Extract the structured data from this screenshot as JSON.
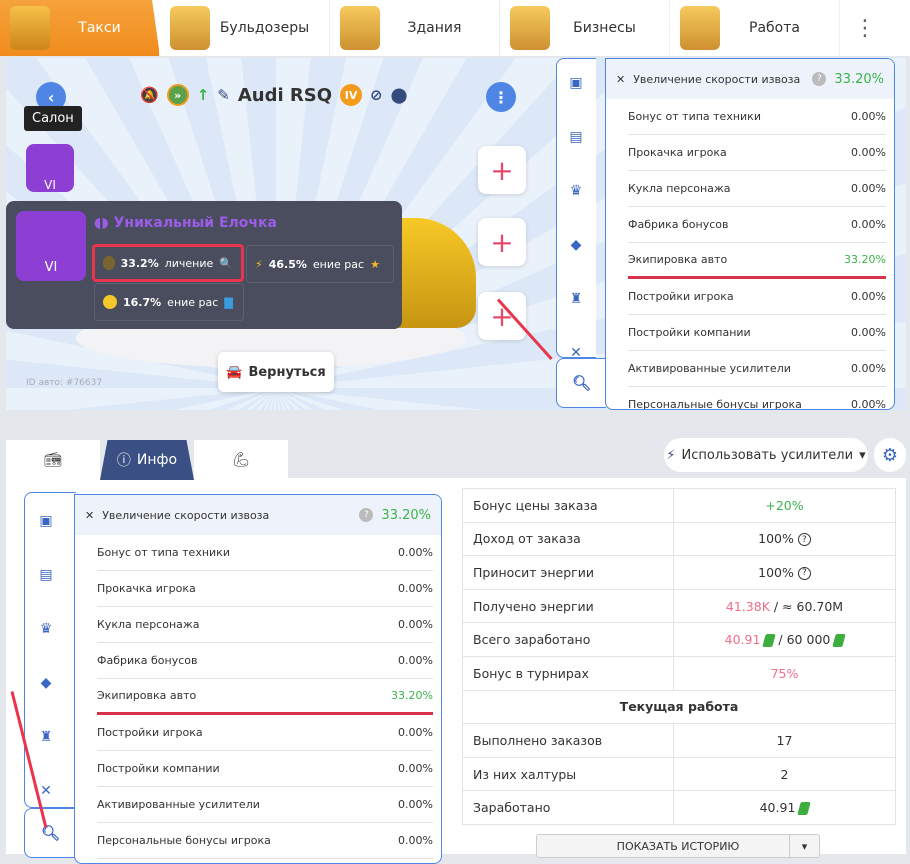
{
  "top_tabs": [
    {
      "label": "Такси",
      "active": true
    },
    {
      "label": "Бульдозеры"
    },
    {
      "label": "Здания"
    },
    {
      "label": "Бизнесы"
    },
    {
      "label": "Работа"
    }
  ],
  "vehicle": {
    "name": "Audi RSQ",
    "tier": "IV",
    "id_label": "ID авто: #76637",
    "tooltip": "Салон",
    "slot_level": "VI",
    "back_button": "Вернуться"
  },
  "item_popup": {
    "title": "Уникальный Елочка",
    "level": "VI",
    "stats": [
      {
        "value": "33.2%",
        "text": "личение"
      },
      {
        "value": "46.5%",
        "text": "ение рас"
      },
      {
        "value": "16.7%",
        "text": "ение рас"
      }
    ]
  },
  "modifiers": {
    "title": "Увеличение скорости извоза",
    "total": "33.20%",
    "help": "?",
    "close": "✕",
    "rows": [
      {
        "label": "Бонус от типа техники",
        "value": "0.00%"
      },
      {
        "label": "Прокачка игрока",
        "value": "0.00%"
      },
      {
        "label": "Кукла персонажа",
        "value": "0.00%"
      },
      {
        "label": "Фабрика бонусов",
        "value": "0.00%"
      },
      {
        "label": "Экипировка авто",
        "value": "33.20%"
      },
      {
        "label": "Постройки игрока",
        "value": "0.00%"
      },
      {
        "label": "Постройки компании",
        "value": "0.00%"
      },
      {
        "label": "Активированные усилители",
        "value": "0.00%"
      },
      {
        "label": "Персональные бонусы игрока",
        "value": "0.00%"
      }
    ]
  },
  "bottom_tabs": {
    "info": "Инфо"
  },
  "boost_button": "Использовать усилители",
  "info_table": {
    "rows": [
      {
        "label": "Бонус цены заказа",
        "value": "+20%"
      },
      {
        "label": "Доход от заказа",
        "value": "100%"
      },
      {
        "label": "Приносит энергии",
        "value": "100%"
      },
      {
        "label": "Получено энергии",
        "value_a": "41.38K",
        "value_b": "/ ≈ 60.70M"
      },
      {
        "label": "Всего заработано",
        "value_a": "40.91",
        "value_b": "/ 60 000"
      },
      {
        "label": "Бонус в турнирах",
        "value": "75%"
      }
    ],
    "section": "Текущая работа",
    "work": [
      {
        "label": "Выполнено заказов",
        "value": "17"
      },
      {
        "label": "Из них халтуры",
        "value": "2"
      },
      {
        "label": "Заработано",
        "value": "40.91"
      }
    ]
  },
  "history_button": "ПОКАЗАТЬ ИСТОРИЮ",
  "colors": {
    "accent": "#4f86e6",
    "highlight": "#e8344c",
    "positive": "#3bb34a",
    "pink": "#ee6f8c",
    "purple": "#8d3fd3"
  }
}
